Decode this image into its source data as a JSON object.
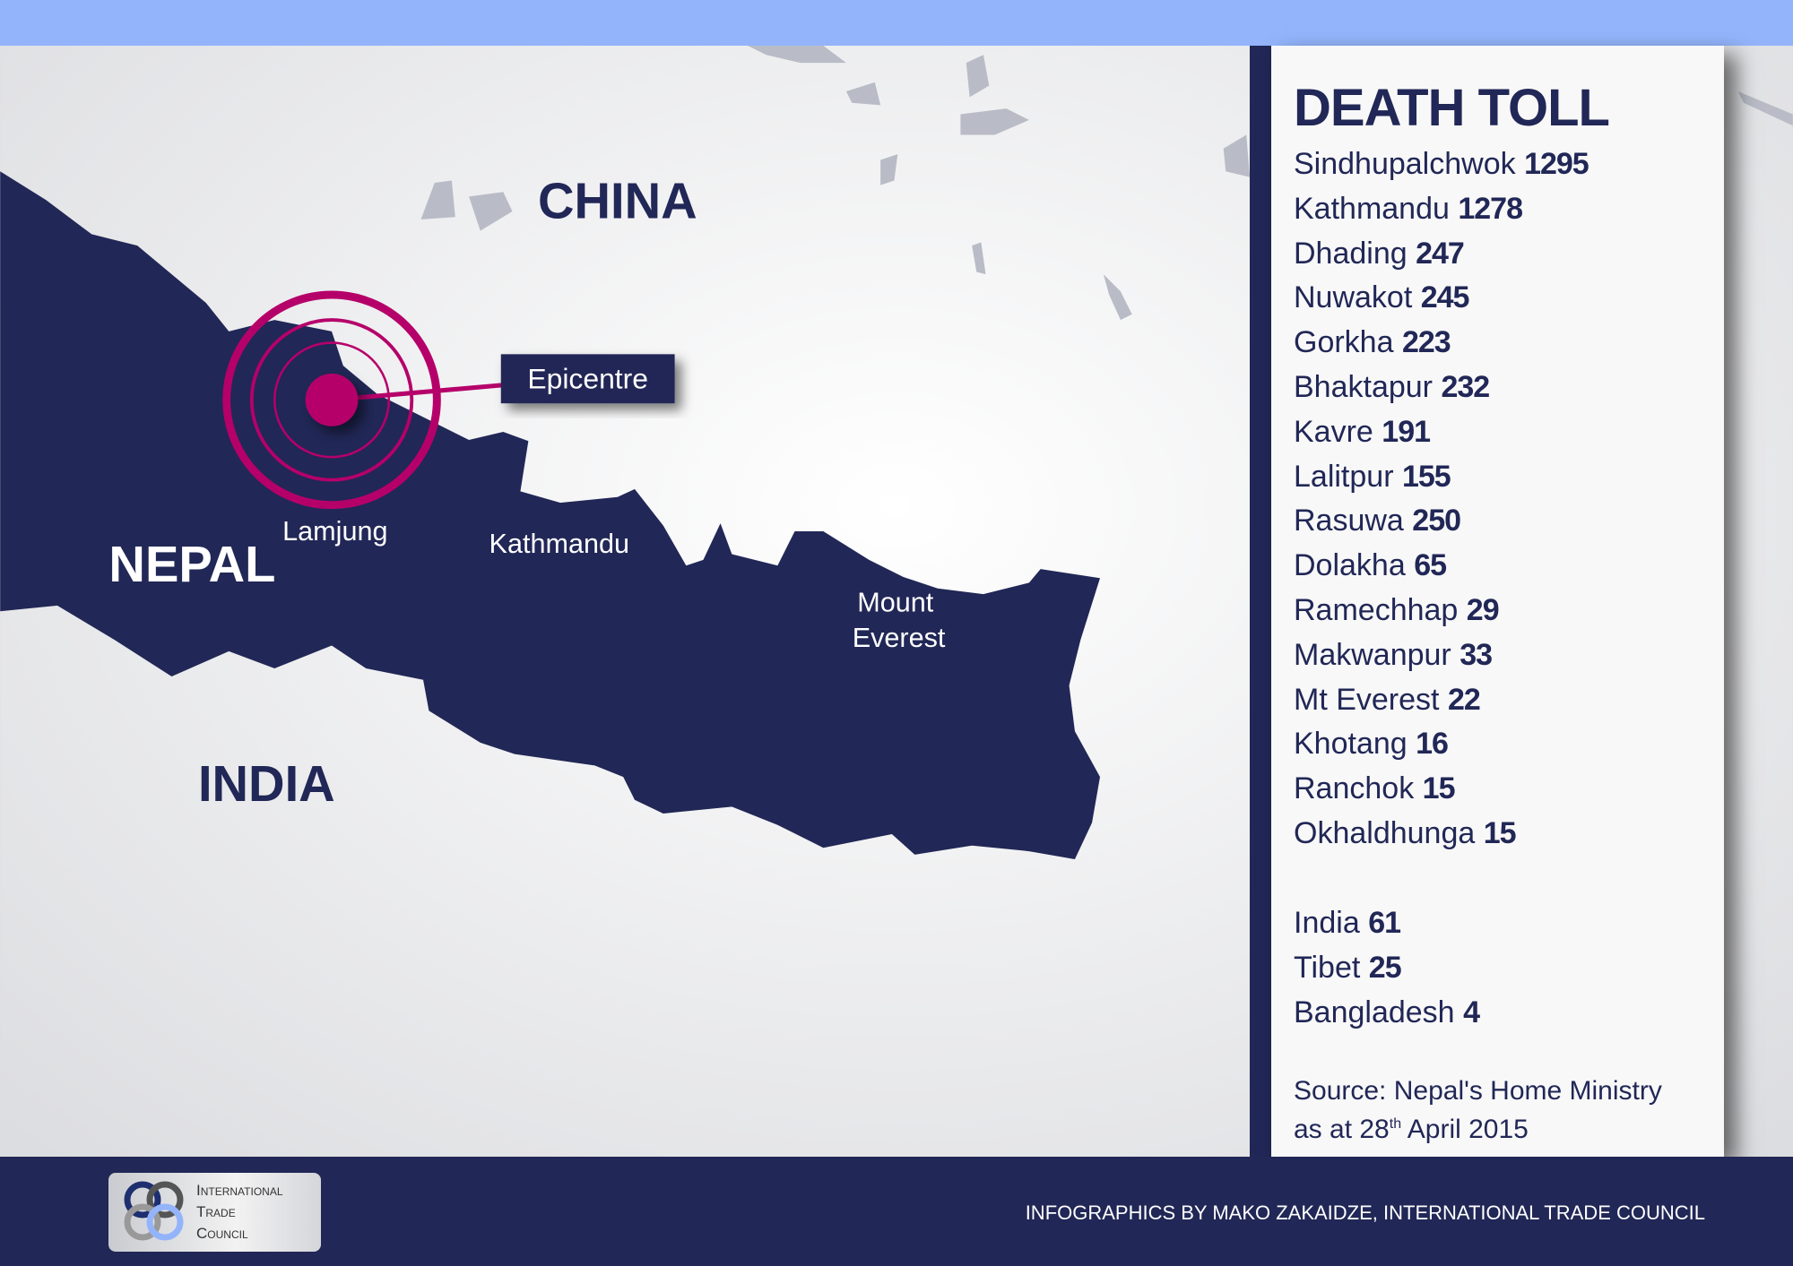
{
  "map": {
    "labels": {
      "china": "CHINA",
      "nepal": "NEPAL",
      "india": "INDIA",
      "lamjung": "Lamjung",
      "kathmandu": "Kathmandu",
      "mount": "Mount",
      "everest": "Everest"
    },
    "epicentre_label": "Epicentre",
    "colors": {
      "nepal": "#212756",
      "epicentre": "#b5006a",
      "top_bar": "#93b4fb"
    }
  },
  "death_toll": {
    "title": "DEATH TOLL",
    "districts": [
      {
        "name": "Sindhupalchwok",
        "count": "1295"
      },
      {
        "name": "Kathmandu",
        "count": "1278"
      },
      {
        "name": "Dhading",
        "count": "247"
      },
      {
        "name": "Nuwakot",
        "count": "245"
      },
      {
        "name": "Gorkha",
        "count": "223"
      },
      {
        "name": "Bhaktapur",
        "count": "232"
      },
      {
        "name": "Kavre",
        "count": "191"
      },
      {
        "name": "Lalitpur",
        "count": "155"
      },
      {
        "name": "Rasuwa",
        "count": "250"
      },
      {
        "name": "Dolakha",
        "count": "65"
      },
      {
        "name": "Ramechhap",
        "count": "29"
      },
      {
        "name": "Makwanpur",
        "count": "33"
      },
      {
        "name": "Mt Everest",
        "count": "22"
      },
      {
        "name": "Khotang",
        "count": "16"
      },
      {
        "name": "Ranchok",
        "count": "15"
      },
      {
        "name": "Okhaldhunga",
        "count": "15"
      }
    ],
    "countries": [
      {
        "name": "India",
        "count": "61"
      },
      {
        "name": "Tibet",
        "count": "25"
      },
      {
        "name": "Bangladesh",
        "count": "4"
      }
    ],
    "source_line1": "Source: Nepal's Home Ministry",
    "source_line2_pre": "as at 28",
    "source_line2_sup": "th",
    "source_line2_post": " April 2015"
  },
  "footer": {
    "credit": "INFOGRAPHICS BY MAKO ZAKAIDZE, INTERNATIONAL TRADE COUNCIL",
    "logo_lines": [
      "International",
      "Trade",
      "Council"
    ]
  }
}
